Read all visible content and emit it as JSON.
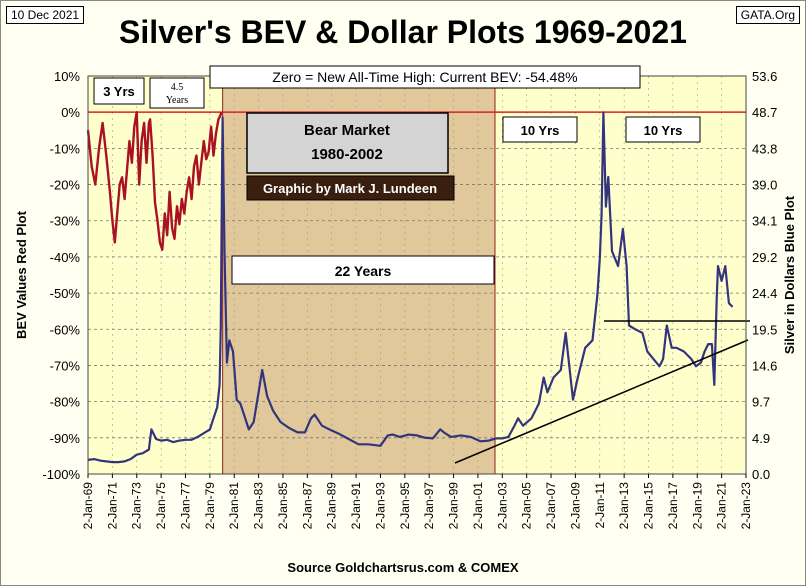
{
  "header": {
    "date": "10 Dec 2021",
    "source_badge": "GATA.Org",
    "title": "Silver's BEV & Dollar Plots 1969-2021"
  },
  "footer": {
    "caption": "Source Goldchartsrus.com & COMEX"
  },
  "chart_data": {
    "type": "line",
    "title": "Silver's BEV & Dollar Plots 1969-2021",
    "ylabel_left": "BEV Values   Red Plot",
    "ylabel_right": "Silver in Dollars   Blue Plot",
    "ylim_left": [
      -100,
      10
    ],
    "ylim_right": [
      0.0,
      53.6
    ],
    "left_ticks": [
      "10%",
      "0%",
      "-10%",
      "-20%",
      "-30%",
      "-40%",
      "-50%",
      "-60%",
      "-70%",
      "-80%",
      "-90%",
      "-100%"
    ],
    "right_ticks": [
      "53.6",
      "48.7",
      "43.8",
      "39.0",
      "34.1",
      "29.2",
      "24.4",
      "19.5",
      "14.6",
      "9.7",
      "4.9",
      "0.0"
    ],
    "x_ticks": [
      "2-Jan-69",
      "2-Jan-71",
      "2-Jan-73",
      "2-Jan-75",
      "2-Jan-77",
      "2-Jan-79",
      "2-Jan-81",
      "2-Jan-83",
      "2-Jan-85",
      "2-Jan-87",
      "2-Jan-89",
      "2-Jan-91",
      "2-Jan-93",
      "2-Jan-95",
      "2-Jan-97",
      "2-Jan-99",
      "2-Jan-01",
      "2-Jan-03",
      "2-Jan-05",
      "2-Jan-07",
      "2-Jan-09",
      "2-Jan-11",
      "2-Jan-13",
      "2-Jan-15",
      "2-Jan-17",
      "2-Jan-19",
      "2-Jan-21",
      "2-Jan-23"
    ],
    "x_range_years": [
      1969,
      2023
    ],
    "bear_market_years": [
      1980.05,
      2002.4
    ],
    "annotations": {
      "zero_note": "Zero = New All-Time High: Current BEV: -54.48%",
      "label_3yrs": "3 Yrs",
      "label_45yrs_top": "4.5",
      "label_45yrs_bottom": "Years",
      "bear_line1": "Bear Market",
      "bear_line2": "1980-2002",
      "credit": "Graphic by Mark J. Lundeen",
      "label_22yrs": "22 Years",
      "label_10yrs_a": "10 Yrs",
      "label_10yrs_b": "10 Yrs"
    },
    "series": [
      {
        "name": "BEV Values (Red Plot)",
        "color": "#aa1122",
        "axis": "left",
        "year": [
          1969.0,
          1969.3,
          1969.6,
          1969.9,
          1970.2,
          1970.5,
          1970.8,
          1971.0,
          1971.2,
          1971.4,
          1971.6,
          1971.8,
          1972.0,
          1972.2,
          1972.4,
          1972.6,
          1972.8,
          1973.0,
          1973.2,
          1973.4,
          1973.6,
          1973.8,
          1974.0,
          1974.1,
          1974.3,
          1974.5,
          1974.7,
          1974.9,
          1975.1,
          1975.3,
          1975.5,
          1975.7,
          1975.9,
          1976.1,
          1976.3,
          1976.5,
          1976.7,
          1976.9,
          1977.1,
          1977.3,
          1977.5,
          1977.7,
          1977.9,
          1978.1,
          1978.3,
          1978.5,
          1978.7,
          1978.9,
          1979.1,
          1979.3,
          1979.5,
          1979.7,
          1979.85,
          1979.95
        ],
        "values": [
          -5,
          -15,
          -20,
          -10,
          -3,
          -12,
          -22,
          -30,
          -36,
          -28,
          -20,
          -18,
          -24,
          -16,
          -8,
          -14,
          -4,
          0,
          -20,
          -8,
          -3,
          -14,
          -3,
          -2,
          -12,
          -25,
          -30,
          -36,
          -38,
          -28,
          -34,
          -22,
          -32,
          -35,
          -26,
          -31,
          -24,
          -28,
          -22,
          -18,
          -24,
          -15,
          -12,
          -20,
          -14,
          -8,
          -13,
          -11,
          -4,
          -12,
          -6,
          -2,
          -1,
          0
        ]
      },
      {
        "name": "Silver in Dollars (Blue Plot)",
        "color": "#34347e",
        "axis": "right",
        "year": [
          1969.0,
          1969.5,
          1970.0,
          1970.5,
          1971.0,
          1971.5,
          1972.0,
          1972.5,
          1973.0,
          1973.5,
          1974.0,
          1974.2,
          1974.6,
          1975.0,
          1975.5,
          1976.0,
          1976.5,
          1977.0,
          1977.5,
          1978.0,
          1978.5,
          1979.0,
          1979.3,
          1979.6,
          1979.8,
          1979.9,
          1980.0,
          1980.05,
          1980.2,
          1980.4,
          1980.6,
          1980.9,
          1981.2,
          1981.5,
          1981.8,
          1982.2,
          1982.6,
          1983.0,
          1983.3,
          1983.7,
          1984.2,
          1984.8,
          1985.5,
          1986.2,
          1986.8,
          1987.3,
          1987.6,
          1988.2,
          1988.8,
          1989.5,
          1990.3,
          1991.2,
          1992.0,
          1993.0,
          1993.6,
          1994.0,
          1994.6,
          1995.3,
          1996.0,
          1996.6,
          1997.3,
          1997.9,
          1998.3,
          1998.8,
          1999.6,
          2000.4,
          2001.2,
          2001.9,
          2002.5,
          2003.0,
          2003.5,
          2004.0,
          2004.3,
          2004.7,
          2005.4,
          2006.0,
          2006.4,
          2006.7,
          2007.2,
          2007.8,
          2008.2,
          2008.4,
          2008.8,
          2009.2,
          2009.8,
          2010.4,
          2010.8,
          2011.0,
          2011.15,
          2011.3,
          2011.5,
          2011.7,
          2012.0,
          2012.5,
          2012.9,
          2013.2,
          2013.4,
          2013.9,
          2014.5,
          2014.9,
          2015.4,
          2015.9,
          2016.2,
          2016.5,
          2016.9,
          2017.3,
          2017.9,
          2018.5,
          2018.9,
          2019.3,
          2019.6,
          2019.9,
          2020.2,
          2020.4,
          2020.6,
          2020.7,
          2021.0,
          2021.3,
          2021.6,
          2021.9
        ],
        "values": [
          1.9,
          2.0,
          1.8,
          1.7,
          1.6,
          1.6,
          1.7,
          2.0,
          2.6,
          2.8,
          3.3,
          6.0,
          4.7,
          4.5,
          4.6,
          4.3,
          4.5,
          4.6,
          4.6,
          5.0,
          5.5,
          6.0,
          7.5,
          9.0,
          12.0,
          20.0,
          40.0,
          48.0,
          30.0,
          15.0,
          18.0,
          16.5,
          10.0,
          9.5,
          8.0,
          6.0,
          7.0,
          11.0,
          14.0,
          10.5,
          8.5,
          7.0,
          6.2,
          5.6,
          5.6,
          7.5,
          8.0,
          6.5,
          6.0,
          5.5,
          4.8,
          4.0,
          4.0,
          3.8,
          5.2,
          5.3,
          5.0,
          5.3,
          5.2,
          4.9,
          4.8,
          6.0,
          5.5,
          5.0,
          5.2,
          5.0,
          4.4,
          4.5,
          4.8,
          4.8,
          5.0,
          6.5,
          7.5,
          6.5,
          7.5,
          9.5,
          13.0,
          11.0,
          13.0,
          14.0,
          19.0,
          16.0,
          10.0,
          13.0,
          17.0,
          18.0,
          24.0,
          29.0,
          35.0,
          48.7,
          36.0,
          40.0,
          30.0,
          28.0,
          33.0,
          28.0,
          20.0,
          19.5,
          19.0,
          16.5,
          15.5,
          14.5,
          15.5,
          20.0,
          17.0,
          17.0,
          16.5,
          15.5,
          14.5,
          15.0,
          16.5,
          17.5,
          17.5,
          12.0,
          24.0,
          28.0,
          26.0,
          28.0,
          23.0,
          22.5
        ]
      }
    ]
  }
}
